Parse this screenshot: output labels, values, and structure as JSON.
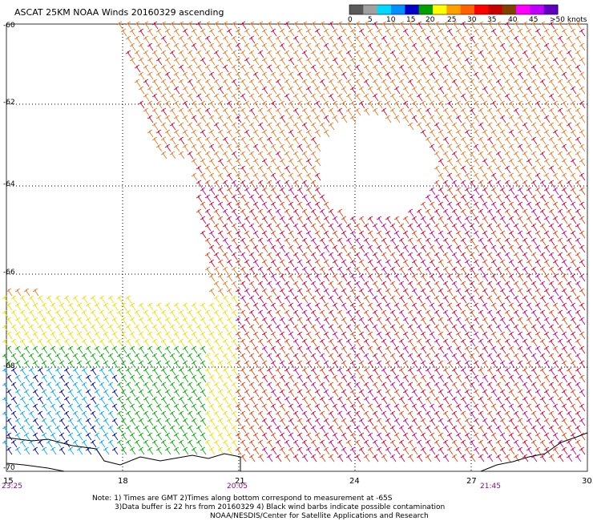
{
  "title": "ASCAT 25KM NOAA Winds 20160329 ascending",
  "color_scale": {
    "tick_labels": [
      "0",
      "5",
      "10",
      "15",
      "20",
      "25",
      "30",
      "35",
      "40",
      "45",
      ">50 knots"
    ],
    "colors": [
      "#5a5a5a",
      "#a0a0a0",
      "#00d8ff",
      "#0090ff",
      "#0000c8",
      "#00a000",
      "#ffff00",
      "#ffa000",
      "#ff6000",
      "#ff0000",
      "#c80000",
      "#804000",
      "#ff00ff",
      "#c000ff",
      "#6000c0"
    ]
  },
  "lat_labels": [
    "-60",
    "-62",
    "-64",
    "-66",
    "-68",
    "-70"
  ],
  "lon_labels": [
    "15",
    "18",
    "21",
    "24",
    "27",
    "30"
  ],
  "time_labels": [
    "23:25",
    "20:05",
    "21:45"
  ],
  "notes": [
    "Note: 1) Times are GMT 2)Times along bottom correspond to measurement at -65S",
    "3)Data buffer is 22 hrs from 20160329 4) Black wind barbs indicate possible contamination",
    "NOAA/NESDIS/Center for Satellite Applications and Research"
  ],
  "map": {
    "lat_range": [
      -70,
      -60
    ],
    "lon_range": [
      15,
      30
    ],
    "grid": true,
    "coastline": "Antarctic coast along bottom edge",
    "wind_barb_colors": {
      "strong_purple": "#c8008c",
      "red": "#e0002a",
      "orange_red": "#f04010",
      "orange": "#f07820",
      "yellow": "#f0e000",
      "green": "#00b000",
      "blue": "#0000c8",
      "cyan": "#00a8ff"
    }
  }
}
